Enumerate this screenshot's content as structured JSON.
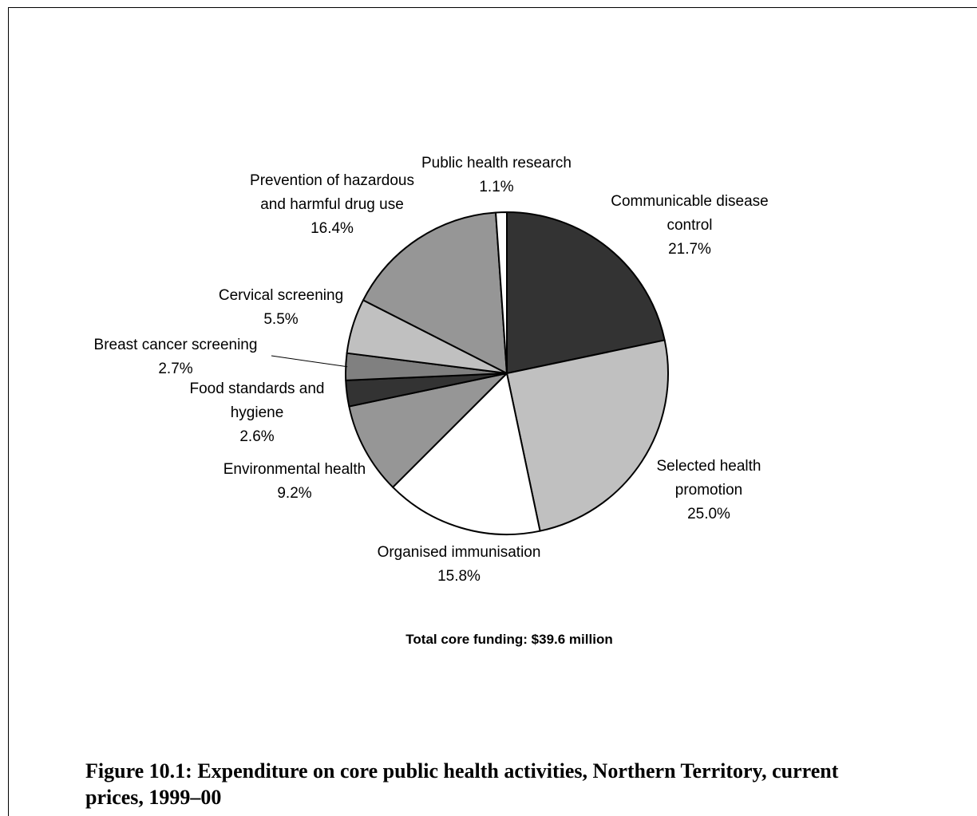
{
  "chart_data": {
    "type": "pie",
    "start_angle_deg": 0,
    "direction": "clockwise",
    "slices": [
      {
        "name": "Communicable disease control",
        "label_lines": [
          "Communicable disease",
          "control"
        ],
        "value": 21.7,
        "value_label": "21.7%",
        "color": "#333333"
      },
      {
        "name": "Selected health promotion",
        "label_lines": [
          "Selected health",
          "promotion"
        ],
        "value": 25.0,
        "value_label": "25.0%",
        "color": "#c0c0c0"
      },
      {
        "name": "Organised immunisation",
        "label_lines": [
          "Organised immunisation"
        ],
        "value": 15.8,
        "value_label": "15.8%",
        "color": "#ffffff"
      },
      {
        "name": "Environmental health",
        "label_lines": [
          "Environmental health"
        ],
        "value": 9.2,
        "value_label": "9.2%",
        "color": "#969696"
      },
      {
        "name": "Food standards and hygiene",
        "label_lines": [
          "Food standards and",
          "hygiene"
        ],
        "value": 2.6,
        "value_label": "2.6%",
        "color": "#333333"
      },
      {
        "name": "Breast cancer screening",
        "label_lines": [
          "Breast cancer screening"
        ],
        "value": 2.7,
        "value_label": "2.7%",
        "color": "#808080"
      },
      {
        "name": "Cervical screening",
        "label_lines": [
          "Cervical screening"
        ],
        "value": 5.5,
        "value_label": "5.5%",
        "color": "#c0c0c0"
      },
      {
        "name": "Prevention of hazardous and harmful drug use",
        "label_lines": [
          "Prevention of hazardous",
          "and harmful drug use"
        ],
        "value": 16.4,
        "value_label": "16.4%",
        "color": "#969696"
      },
      {
        "name": "Public health research",
        "label_lines": [
          "Public health research"
        ],
        "value": 1.1,
        "value_label": "1.1%",
        "color": "#ffffff"
      }
    ],
    "annotation": "Total core funding: $39.6 million"
  },
  "caption": "Figure 10.1: Expenditure on core public health activities, Northern Territory, current prices, 1999–00"
}
